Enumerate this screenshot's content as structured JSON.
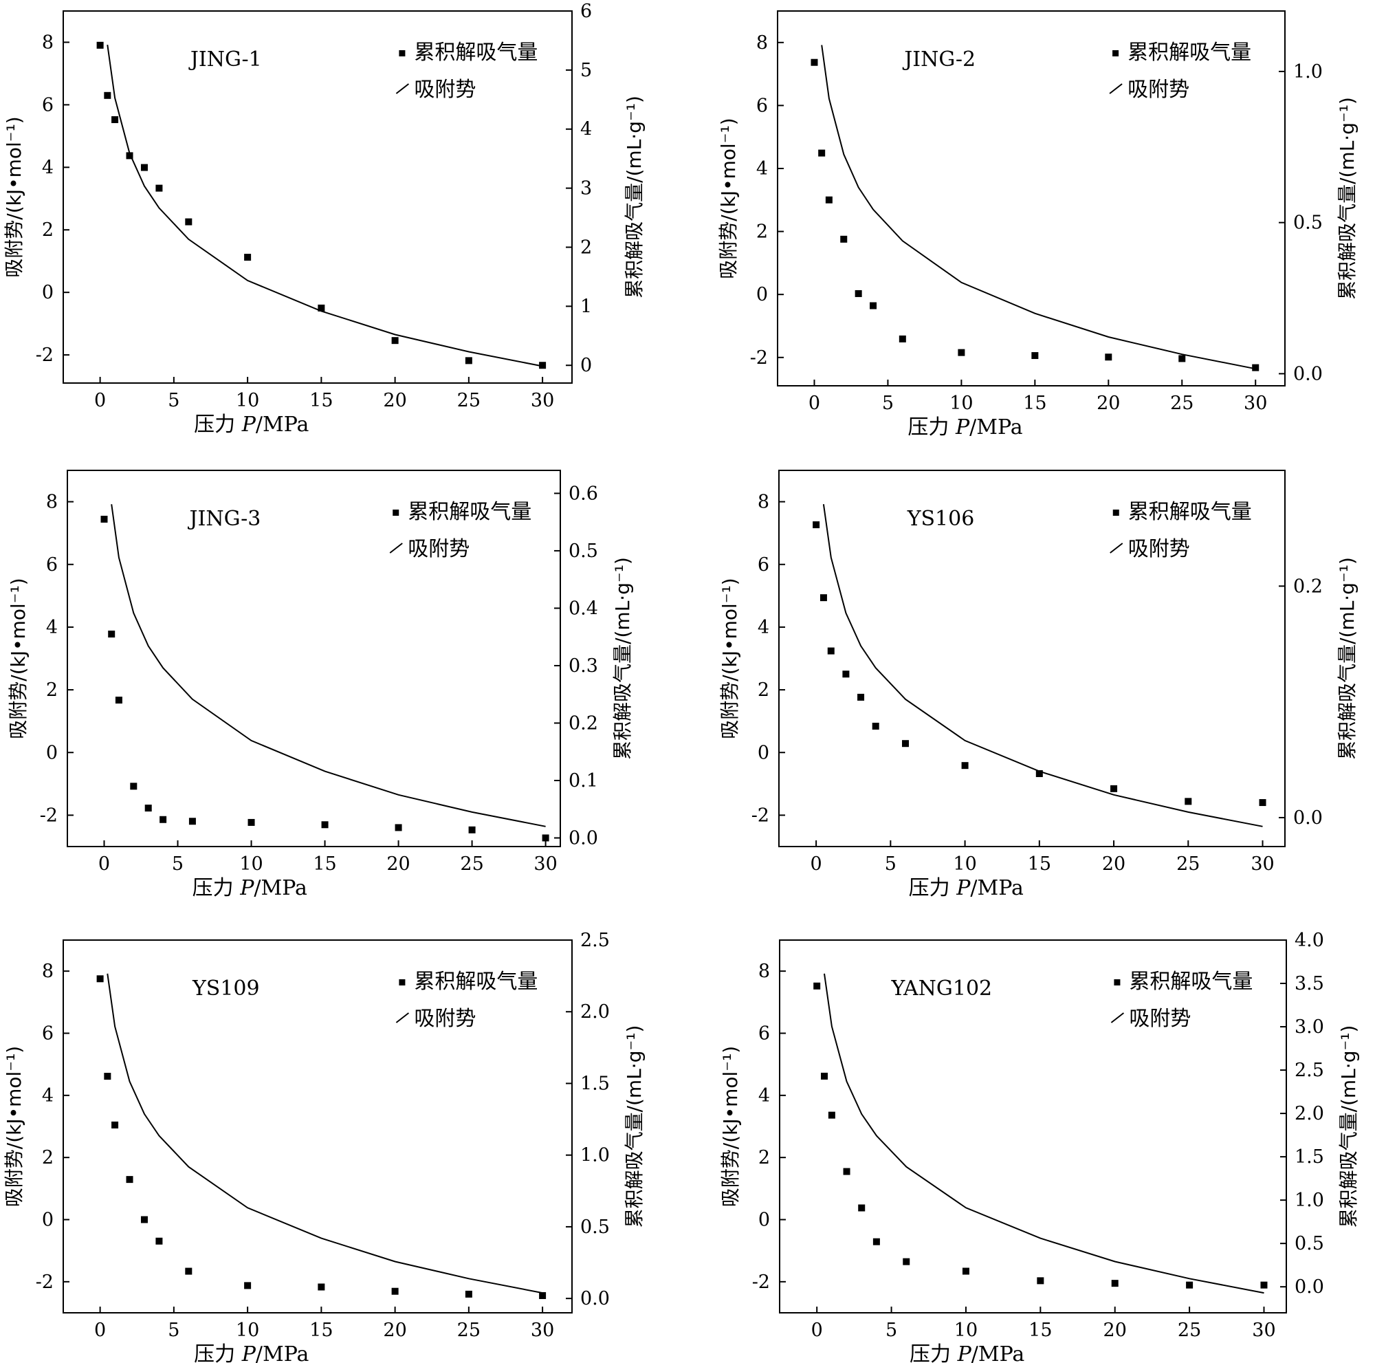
{
  "colors": {
    "foreground": "#000000",
    "background": "#ffffff"
  },
  "chart_data": [
    {
      "type": "scatter",
      "title": "JING-1",
      "xlabel_prefix": "压力 ",
      "xlabel_var": "P",
      "xlabel_unit": "/MPa",
      "ylabel_left": "吸附势/(kJ•mol⁻¹)",
      "ylabel_right": "累积解吸气量/(mL·g⁻¹)",
      "xlim": [
        -2.5,
        32
      ],
      "xticks": [
        0,
        5,
        10,
        15,
        20,
        25,
        30
      ],
      "xtick_labels": [
        "0",
        "5",
        "10",
        "15",
        "20",
        "25",
        "30"
      ],
      "ylim_left": [
        -2.9,
        9.0
      ],
      "yticks_left": [
        -2,
        0,
        2,
        4,
        6,
        8
      ],
      "ytick_labels_left": [
        "-2",
        "0",
        "2",
        "4",
        "6",
        "8"
      ],
      "ylim_right": [
        -0.3,
        6.0
      ],
      "yticks_right": [
        0,
        1,
        2,
        3,
        4,
        5,
        6
      ],
      "ytick_labels_right": [
        "0",
        "1",
        "2",
        "3",
        "4",
        "5",
        "6"
      ],
      "grid": false,
      "legend_position": "top-right",
      "series": [
        {
          "name": "累积解吸气量",
          "axis": "right",
          "marker": "square",
          "x": [
            0,
            0.5,
            1,
            2,
            3,
            4,
            6,
            10,
            15,
            20,
            25,
            30
          ],
          "y": [
            5.42,
            4.57,
            4.16,
            3.55,
            3.35,
            3.0,
            2.43,
            1.83,
            0.97,
            0.42,
            0.08,
            0.0
          ]
        },
        {
          "name": "吸附势",
          "axis": "left",
          "marker": "line",
          "x": [
            0.5,
            1,
            2,
            3,
            4,
            6,
            10,
            15,
            20,
            25,
            30
          ],
          "y": [
            7.92,
            6.22,
            4.45,
            3.4,
            2.7,
            1.7,
            0.38,
            -0.6,
            -1.35,
            -1.9,
            -2.36
          ]
        }
      ]
    },
    {
      "type": "scatter",
      "title": "JING-2",
      "xlabel_prefix": "压力 ",
      "xlabel_var": "P",
      "xlabel_unit": "/MPa",
      "ylabel_left": "吸附势/(kJ•mol⁻¹)",
      "ylabel_right": "累积解吸气量/(mL·g⁻¹)",
      "xlim": [
        -2.5,
        32
      ],
      "xticks": [
        0,
        5,
        10,
        15,
        20,
        25,
        30
      ],
      "xtick_labels": [
        "0",
        "5",
        "10",
        "15",
        "20",
        "25",
        "30"
      ],
      "ylim_left": [
        -2.9,
        9.0
      ],
      "yticks_left": [
        -2,
        0,
        2,
        4,
        6,
        8
      ],
      "ytick_labels_left": [
        "-2",
        "0",
        "2",
        "4",
        "6",
        "8"
      ],
      "ylim_right": [
        -0.04,
        1.2
      ],
      "yticks_right": [
        0.0,
        0.5,
        1.0
      ],
      "ytick_labels_right": [
        "0.0",
        "0.5",
        "1.0"
      ],
      "grid": false,
      "legend_position": "top-right",
      "series": [
        {
          "name": "累积解吸气量",
          "axis": "right",
          "marker": "square",
          "x": [
            0,
            0.5,
            1,
            2,
            3,
            4,
            6,
            10,
            15,
            20,
            25,
            30
          ],
          "y": [
            1.03,
            0.73,
            0.575,
            0.445,
            0.265,
            0.225,
            0.115,
            0.07,
            0.06,
            0.055,
            0.05,
            0.02
          ]
        },
        {
          "name": "吸附势",
          "axis": "left",
          "marker": "line",
          "x": [
            0.5,
            1,
            2,
            3,
            4,
            6,
            10,
            15,
            20,
            25,
            30
          ],
          "y": [
            7.92,
            6.22,
            4.45,
            3.4,
            2.7,
            1.7,
            0.38,
            -0.6,
            -1.35,
            -1.9,
            -2.36
          ]
        }
      ]
    },
    {
      "type": "scatter",
      "title": "JING-3",
      "xlabel_prefix": "压力 ",
      "xlabel_var": "P",
      "xlabel_unit": "/MPa",
      "ylabel_left": "吸附势/(kJ•mol⁻¹)",
      "ylabel_right": "累积解吸气量/(mL·g⁻¹)",
      "xlim": [
        -2.5,
        31
      ],
      "xticks": [
        0,
        5,
        10,
        15,
        20,
        25,
        30
      ],
      "xtick_labels": [
        "0",
        "5",
        "10",
        "15",
        "20",
        "25",
        "30"
      ],
      "ylim_left": [
        -3.0,
        9.0
      ],
      "yticks_left": [
        -2,
        0,
        2,
        4,
        6,
        8
      ],
      "ytick_labels_left": [
        "-2",
        "0",
        "2",
        "4",
        "6",
        "8"
      ],
      "ylim_right": [
        -0.015,
        0.64
      ],
      "yticks_right": [
        0.0,
        0.1,
        0.2,
        0.3,
        0.4,
        0.5,
        0.6
      ],
      "ytick_labels_right": [
        "0.0",
        "0.1",
        "0.2",
        "0.3",
        "0.4",
        "0.5",
        "0.6"
      ],
      "grid": false,
      "legend_position": "top-right",
      "series": [
        {
          "name": "累积解吸气量",
          "axis": "right",
          "marker": "square",
          "x": [
            0,
            0.5,
            1,
            2,
            3,
            4,
            6,
            10,
            15,
            20,
            25,
            30
          ],
          "y": [
            0.555,
            0.355,
            0.24,
            0.09,
            0.052,
            0.032,
            0.029,
            0.027,
            0.023,
            0.018,
            0.014,
            0.0
          ]
        },
        {
          "name": "吸附势",
          "axis": "left",
          "marker": "line",
          "x": [
            0.5,
            1,
            2,
            3,
            4,
            6,
            10,
            15,
            20,
            25,
            30
          ],
          "y": [
            7.92,
            6.22,
            4.45,
            3.4,
            2.7,
            1.7,
            0.38,
            -0.6,
            -1.35,
            -1.9,
            -2.36
          ]
        }
      ]
    },
    {
      "type": "scatter",
      "title": "YS106",
      "xlabel_prefix": "压力 ",
      "xlabel_var": "P",
      "xlabel_unit": "/MPa",
      "ylabel_left": "吸附势/(kJ•mol⁻¹)",
      "ylabel_right": "累积解吸气量/(mL·g⁻¹)",
      "xlim": [
        -2.5,
        31.5
      ],
      "xticks": [
        0,
        5,
        10,
        15,
        20,
        25,
        30
      ],
      "xtick_labels": [
        "0",
        "5",
        "10",
        "15",
        "20",
        "25",
        "30"
      ],
      "ylim_left": [
        -3.0,
        9.0
      ],
      "yticks_left": [
        -2,
        0,
        2,
        4,
        6,
        8
      ],
      "ytick_labels_left": [
        "-2",
        "0",
        "2",
        "4",
        "6",
        "8"
      ],
      "ylim_right": [
        -0.025,
        0.3
      ],
      "yticks_right": [
        0.0,
        0.2
      ],
      "ytick_labels_right": [
        "0.0",
        "0.2"
      ],
      "grid": false,
      "legend_position": "top-right",
      "series": [
        {
          "name": "累积解吸气量",
          "axis": "right",
          "marker": "square",
          "x": [
            0,
            0.5,
            1,
            2,
            3,
            4,
            6,
            10,
            15,
            20,
            25,
            30
          ],
          "y": [
            0.253,
            0.19,
            0.144,
            0.124,
            0.104,
            0.079,
            0.064,
            0.045,
            0.038,
            0.025,
            0.014,
            0.013
          ]
        },
        {
          "name": "吸附势",
          "axis": "left",
          "marker": "line",
          "x": [
            0.5,
            1,
            2,
            3,
            4,
            6,
            10,
            15,
            20,
            25,
            30
          ],
          "y": [
            7.92,
            6.22,
            4.45,
            3.4,
            2.7,
            1.7,
            0.38,
            -0.6,
            -1.35,
            -1.9,
            -2.36
          ]
        }
      ]
    },
    {
      "type": "scatter",
      "title": "YS109",
      "xlabel_prefix": "压力 ",
      "xlabel_var": "P",
      "xlabel_unit": "/MPa",
      "ylabel_left": "吸附势/(kJ•mol⁻¹)",
      "ylabel_right": "累积解吸气量/(mL·g⁻¹)",
      "xlim": [
        -2.5,
        32
      ],
      "xticks": [
        0,
        5,
        10,
        15,
        20,
        25,
        30
      ],
      "xtick_labels": [
        "0",
        "5",
        "10",
        "15",
        "20",
        "25",
        "30"
      ],
      "ylim_left": [
        -3.0,
        9.0
      ],
      "yticks_left": [
        -2,
        0,
        2,
        4,
        6,
        8
      ],
      "ytick_labels_left": [
        "-2",
        "0",
        "2",
        "4",
        "6",
        "8"
      ],
      "ylim_right": [
        -0.1,
        2.5
      ],
      "yticks_right": [
        0.0,
        0.5,
        1.0,
        1.5,
        2.0,
        2.5
      ],
      "ytick_labels_right": [
        "0.0",
        "0.5",
        "1.0",
        "1.5",
        "2.0",
        "2.5"
      ],
      "grid": false,
      "legend_position": "top-right",
      "series": [
        {
          "name": "累积解吸气量",
          "axis": "right",
          "marker": "square",
          "x": [
            0,
            0.5,
            1,
            2,
            3,
            4,
            6,
            10,
            15,
            20,
            25,
            30
          ],
          "y": [
            2.23,
            1.55,
            1.21,
            0.83,
            0.55,
            0.4,
            0.19,
            0.09,
            0.08,
            0.05,
            0.03,
            0.02
          ]
        },
        {
          "name": "吸附势",
          "axis": "left",
          "marker": "line",
          "x": [
            0.5,
            1,
            2,
            3,
            4,
            6,
            10,
            15,
            20,
            25,
            30
          ],
          "y": [
            7.92,
            6.22,
            4.45,
            3.4,
            2.7,
            1.7,
            0.38,
            -0.6,
            -1.35,
            -1.9,
            -2.36
          ]
        }
      ]
    },
    {
      "type": "scatter",
      "title": "YANG102",
      "xlabel_prefix": "压力 ",
      "xlabel_var": "P",
      "xlabel_unit": "/MPa",
      "ylabel_left": "吸附势/(kJ•mol⁻¹)",
      "ylabel_right": "累积解吸气量/(mL·g⁻¹)",
      "xlim": [
        -2.5,
        31.5
      ],
      "xticks": [
        0,
        5,
        10,
        15,
        20,
        25,
        30
      ],
      "xtick_labels": [
        "0",
        "5",
        "10",
        "15",
        "20",
        "25",
        "30"
      ],
      "ylim_left": [
        -3.0,
        9.0
      ],
      "yticks_left": [
        -2,
        0,
        2,
        4,
        6,
        8
      ],
      "ytick_labels_left": [
        "-2",
        "0",
        "2",
        "4",
        "6",
        "8"
      ],
      "ylim_right": [
        -0.3,
        4.0
      ],
      "yticks_right": [
        0.0,
        0.5,
        1.0,
        1.5,
        2.0,
        2.5,
        3.0,
        3.5,
        4.0
      ],
      "ytick_labels_right": [
        "0.0",
        "0.5",
        "1.0",
        "1.5",
        "2.0",
        "2.5",
        "3.0",
        "3.5",
        "4.0"
      ],
      "grid": false,
      "legend_position": "top-right",
      "series": [
        {
          "name": "累积解吸气量",
          "axis": "right",
          "marker": "square",
          "x": [
            0,
            0.5,
            1,
            2,
            3,
            4,
            6,
            10,
            15,
            20,
            25,
            30
          ],
          "y": [
            3.47,
            2.43,
            1.98,
            1.33,
            0.91,
            0.52,
            0.29,
            0.18,
            0.07,
            0.04,
            0.02,
            0.02
          ]
        },
        {
          "name": "吸附势",
          "axis": "left",
          "marker": "line",
          "x": [
            0.5,
            1,
            2,
            3,
            4,
            6,
            10,
            15,
            20,
            25,
            30
          ],
          "y": [
            7.92,
            6.22,
            4.45,
            3.4,
            2.7,
            1.7,
            0.38,
            -0.6,
            -1.35,
            -1.9,
            -2.36
          ]
        }
      ]
    }
  ]
}
